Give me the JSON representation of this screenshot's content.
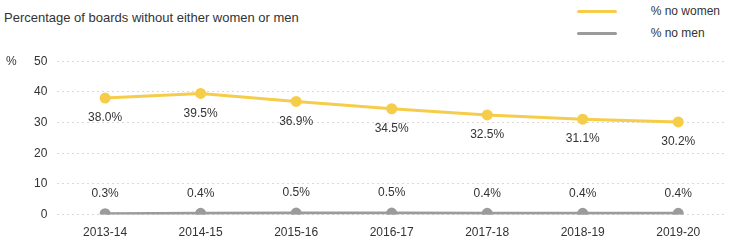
{
  "chart_data": {
    "type": "line",
    "title": "Percentage of boards without either women or men",
    "ylabel": "%",
    "categories": [
      "2013-14",
      "2014-15",
      "2015-16",
      "2016-17",
      "2017-18",
      "2018-19",
      "2019-20"
    ],
    "series": [
      {
        "name": "% no women",
        "color": "#f5cd4a",
        "values": [
          38.0,
          39.5,
          36.9,
          34.5,
          32.5,
          31.1,
          30.2
        ],
        "value_labels": [
          "38.0%",
          "39.5%",
          "36.9%",
          "34.5%",
          "32.5%",
          "31.1%",
          "30.2%"
        ]
      },
      {
        "name": "% no men",
        "color": "#9b9b9b",
        "values": [
          0.3,
          0.4,
          0.5,
          0.5,
          0.4,
          0.4,
          0.4
        ],
        "value_labels": [
          "0.3%",
          "0.4%",
          "0.5%",
          "0.5%",
          "0.4%",
          "0.4%",
          "0.4%"
        ]
      }
    ],
    "ylim": [
      0,
      50
    ],
    "yticks": [
      0,
      10,
      20,
      30,
      40,
      50
    ],
    "grid": true,
    "legend": "upper right",
    "data_labels": true,
    "marker": "circle"
  }
}
